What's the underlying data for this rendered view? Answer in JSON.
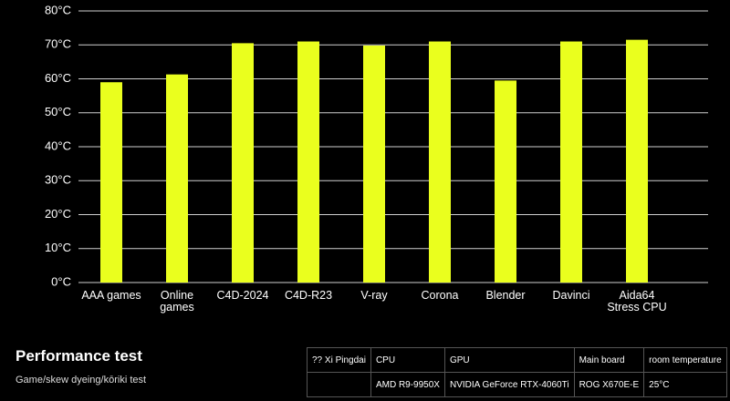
{
  "chart_data": {
    "type": "bar",
    "categories": [
      "AAA games",
      "Online games",
      "C4D-2024",
      "C4D-R23",
      "V-ray",
      "Corona",
      "Blender",
      "Davinci",
      "Aida64 Stress CPU"
    ],
    "values": [
      59,
      61.3,
      70.5,
      71,
      69.8,
      71,
      59.5,
      71,
      71.5
    ],
    "color": "#eaff1e",
    "ylim": [
      0,
      80
    ],
    "yticks": [
      {
        "value": 0,
        "label": "0°C"
      },
      {
        "value": 10,
        "label": "10°C"
      },
      {
        "value": 20,
        "label": "20°C"
      },
      {
        "value": 30,
        "label": "30°C"
      },
      {
        "value": 40,
        "label": "40°C"
      },
      {
        "value": 50,
        "label": "50°C"
      },
      {
        "value": 60,
        "label": "60°C"
      },
      {
        "value": 70,
        "label": "70°C"
      },
      {
        "value": 80,
        "label": "80°C"
      }
    ],
    "grid": true
  },
  "caption": {
    "title": "Performance test",
    "subtitle": "Game/skew dyeing/kōriki test"
  },
  "table": {
    "header": [
      "?? Xi Pingdai",
      "CPU",
      "GPU",
      "Main board",
      "room temperature"
    ],
    "row": [
      "AMD R9-9950X",
      "NVIDIA GeForce RTX-4060Ti",
      "ROG X670E-E",
      "25°C"
    ]
  }
}
